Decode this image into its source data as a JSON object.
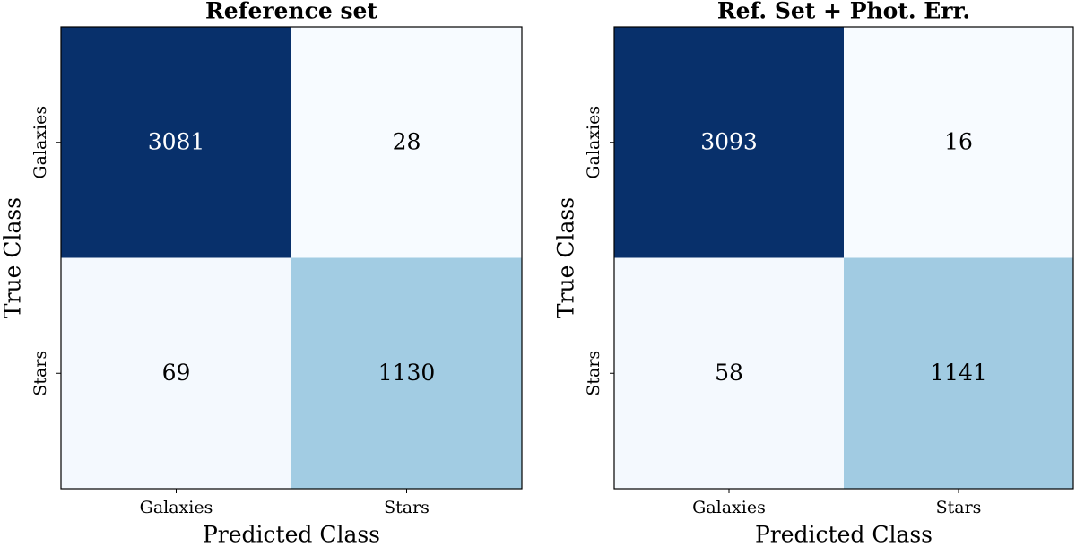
{
  "chart_data": [
    {
      "type": "heatmap",
      "title": "Reference set",
      "x_label": "Predicted Class",
      "y_label": "True Class",
      "x_categories": [
        "Galaxies",
        "Stars"
      ],
      "y_categories": [
        "Galaxies",
        "Stars"
      ],
      "values": [
        [
          3081,
          28
        ],
        [
          69,
          1130
        ]
      ],
      "colormap": [
        "#f7fbff",
        "#deebf7",
        "#c6dbef",
        "#9ecae1",
        "#6baed6",
        "#4292c6",
        "#2171b5",
        "#08519c",
        "#08306b"
      ]
    },
    {
      "type": "heatmap",
      "title": "Ref. Set + Phot. Err.",
      "x_label": "Predicted Class",
      "y_label": "True Class",
      "x_categories": [
        "Galaxies",
        "Stars"
      ],
      "y_categories": [
        "Galaxies",
        "Stars"
      ],
      "values": [
        [
          3093,
          16
        ],
        [
          58,
          1141
        ]
      ],
      "colormap": [
        "#f7fbff",
        "#deebf7",
        "#c6dbef",
        "#9ecae1",
        "#6baed6",
        "#4292c6",
        "#2171b5",
        "#08519c",
        "#08306b"
      ]
    }
  ]
}
